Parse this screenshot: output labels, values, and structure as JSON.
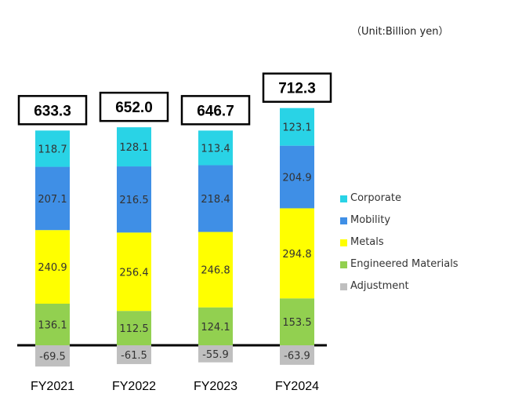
{
  "unit_note": "（Unit:Billion yen）",
  "chart_data": {
    "type": "bar",
    "stacked": true,
    "categories": [
      "FY2021",
      "FY2022",
      "FY2023",
      "FY2024"
    ],
    "totals": [
      "633.3",
      "652.0",
      "646.7",
      "712.3"
    ],
    "series": [
      {
        "name": "Adjustment",
        "color": "#bfbfbf",
        "values": [
          -69.5,
          -61.5,
          -55.9,
          -63.9
        ]
      },
      {
        "name": "Engineered Materials",
        "color": "#92d050",
        "values": [
          136.1,
          112.5,
          124.1,
          153.5
        ]
      },
      {
        "name": "Metals",
        "color": "#ffff00",
        "values": [
          240.9,
          256.4,
          246.8,
          294.8
        ]
      },
      {
        "name": "Mobility",
        "color": "#3f8fe6",
        "values": [
          207.1,
          216.5,
          218.4,
          204.9
        ]
      },
      {
        "name": "Corporate",
        "color": "#29d3e6",
        "values": [
          118.7,
          128.1,
          113.4,
          123.1
        ]
      }
    ],
    "legend_order": [
      "Corporate",
      "Mobility",
      "Metals",
      "Engineered Materials",
      "Adjustment"
    ],
    "legend_position": "right",
    "grid": false
  }
}
